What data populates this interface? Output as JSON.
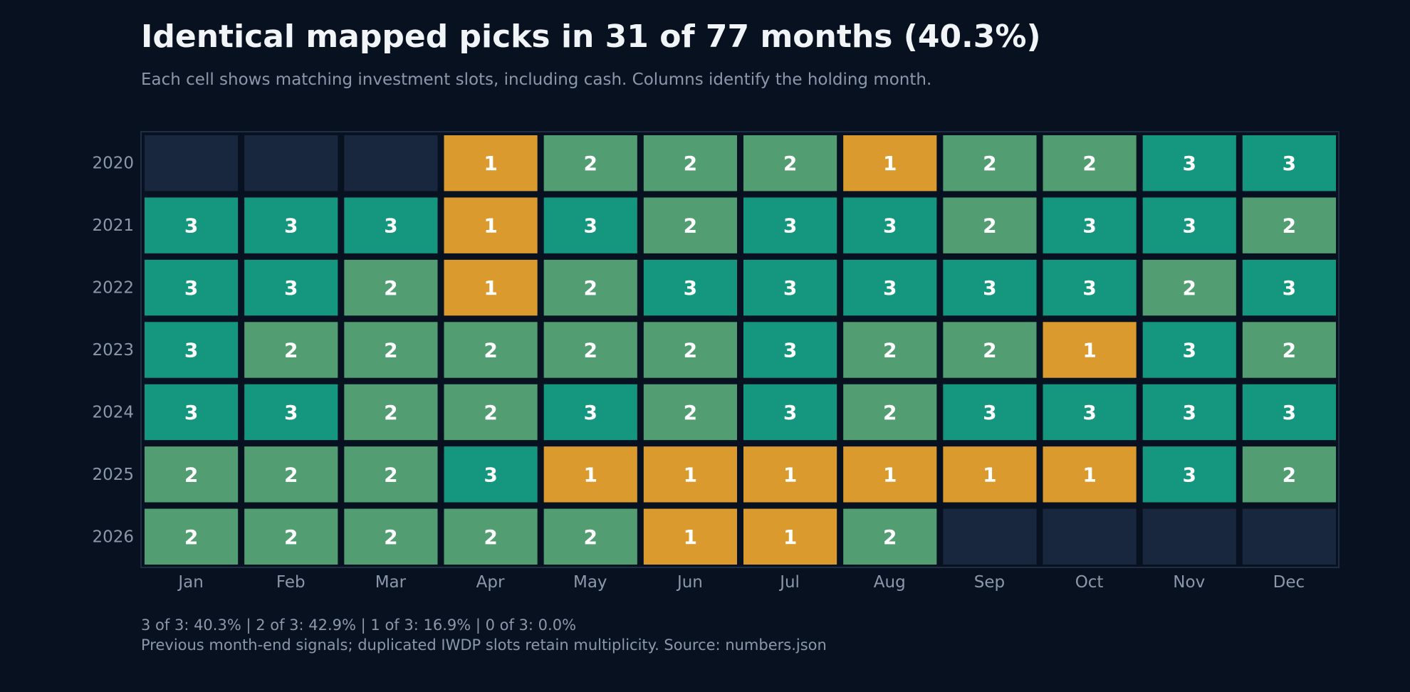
{
  "chart_data": {
    "type": "heatmap",
    "title": "Identical mapped picks in 31 of 77 months (40.3%)",
    "subtitle": "Each cell shows matching investment slots, including cash. Columns identify the holding month.",
    "x_categories": [
      "Jan",
      "Feb",
      "Mar",
      "Apr",
      "May",
      "Jun",
      "Jul",
      "Aug",
      "Sep",
      "Oct",
      "Nov",
      "Dec"
    ],
    "y_categories": [
      "2020",
      "2021",
      "2022",
      "2023",
      "2024",
      "2025",
      "2026"
    ],
    "values": [
      [
        null,
        null,
        null,
        1,
        2,
        2,
        2,
        1,
        2,
        2,
        3,
        3
      ],
      [
        3,
        3,
        3,
        1,
        3,
        2,
        3,
        3,
        2,
        3,
        3,
        2
      ],
      [
        3,
        3,
        2,
        1,
        2,
        3,
        3,
        3,
        3,
        3,
        2,
        3
      ],
      [
        3,
        2,
        2,
        2,
        2,
        2,
        3,
        2,
        2,
        1,
        3,
        2
      ],
      [
        3,
        3,
        2,
        2,
        3,
        2,
        3,
        2,
        3,
        3,
        3,
        3
      ],
      [
        2,
        2,
        2,
        3,
        1,
        1,
        1,
        1,
        1,
        1,
        3,
        2
      ],
      [
        2,
        2,
        2,
        2,
        2,
        1,
        1,
        2,
        null,
        null,
        null,
        null
      ]
    ],
    "value_range": [
      0,
      3
    ],
    "color_scale": {
      "3": "#14967f",
      "2": "#529e72",
      "1": "#db9a2e",
      "0": "#c0392b",
      "empty": "#19273e"
    },
    "footnotes": [
      "3 of 3: 40.3% | 2 of 3: 42.9% | 1 of 3: 16.9% | 0 of 3: 0.0%",
      "Previous month-end signals; duplicated IWDP slots retain multiplicity. Source: numbers.json"
    ],
    "legend": "none",
    "grid": false
  },
  "colors": {
    "background": "#081120",
    "title": "#f2f5f8",
    "muted_text": "#8b97aa",
    "cell_text": "#ffffff",
    "frame": "#1f2d44"
  }
}
